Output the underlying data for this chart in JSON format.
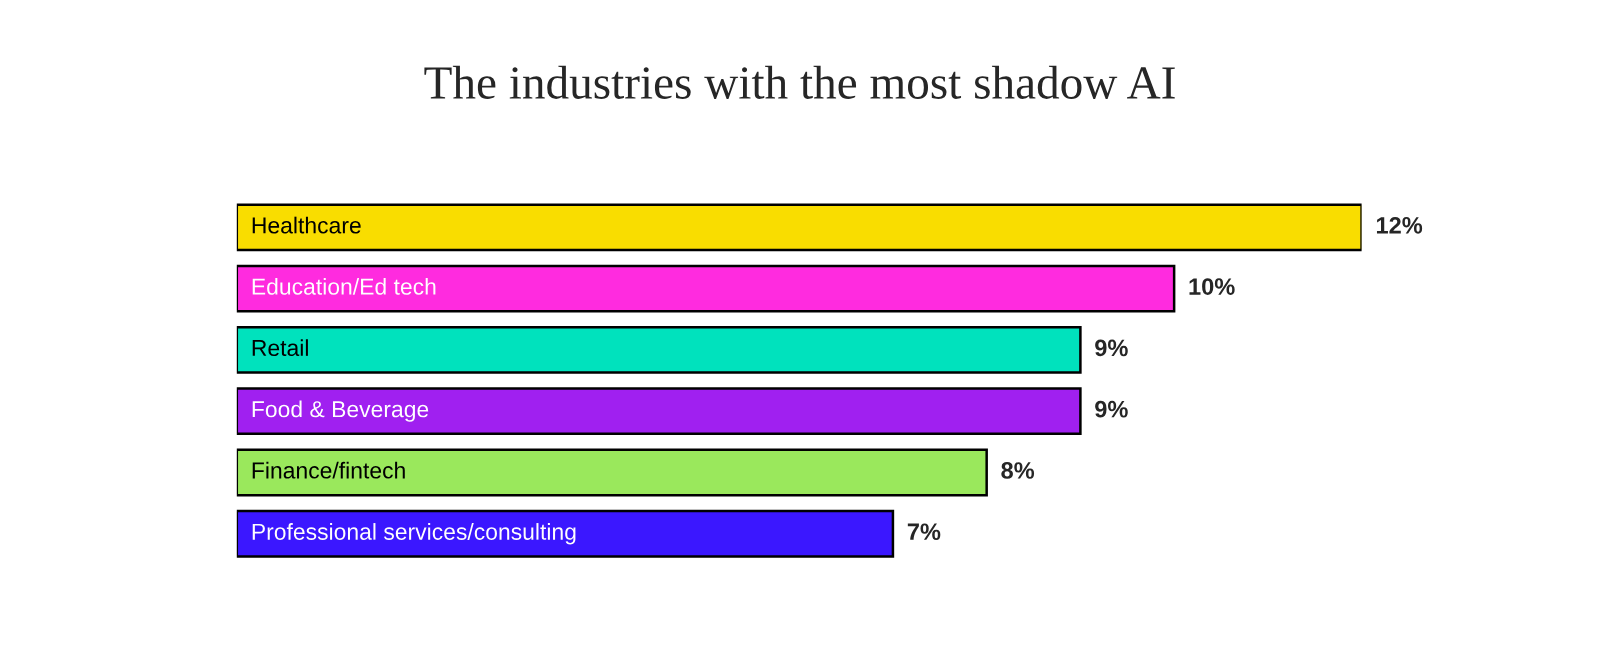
{
  "chart_data": {
    "type": "bar",
    "orientation": "horizontal",
    "title": "The industries with the most shadow AI",
    "categories": [
      "Healthcare",
      "Education/Ed tech",
      "Retail",
      "Food & Beverage",
      "Finance/fintech",
      "Professional services/consulting"
    ],
    "values": [
      12,
      10,
      9,
      9,
      8,
      7
    ],
    "colors": [
      "#f9dd00",
      "#ff2bdf",
      "#00e2bd",
      "#a020f0",
      "#9ae85c",
      "#3b17ff"
    ],
    "value_labels": [
      "12%",
      "10%",
      "9%",
      "9%",
      "8%",
      "7%"
    ],
    "tick_labels": false
  }
}
